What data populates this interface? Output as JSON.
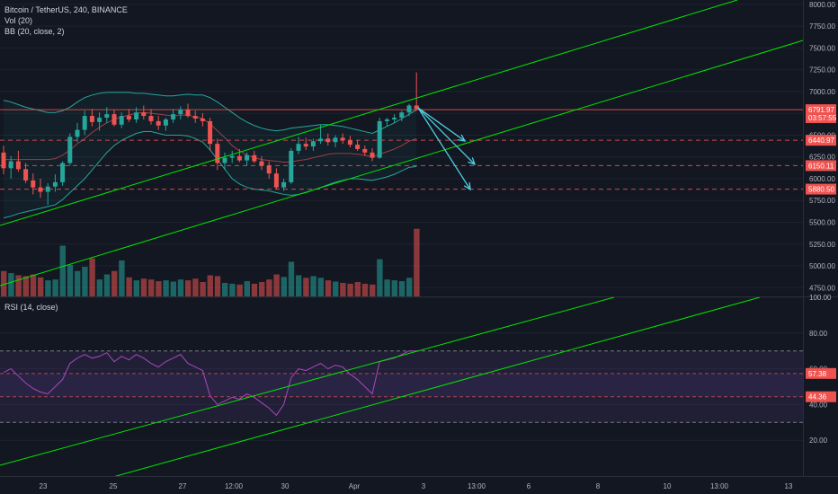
{
  "legend": {
    "symbol": "Bitcoin / TetherUS, 240, BINANCE",
    "volume": "Vol (20)",
    "bollinger": "BB (20, close, 2)",
    "rsi": "RSI (14, close)"
  },
  "colors": {
    "background": "#131722",
    "up": "#26a69a",
    "down": "#ef5350",
    "channel": "#00e600",
    "arrow": "#4dd0e1",
    "rsi_band": "#7e57c2",
    "bb": "#26a69a"
  },
  "chart_data": [
    {
      "type": "candlestick",
      "title": "Bitcoin / TetherUS, 240, BINANCE",
      "ylim": [
        4650,
        8050
      ],
      "y_ticks": [
        4750,
        5000,
        5250,
        5500,
        5750,
        6000,
        6250,
        6500,
        6750,
        7000,
        7250,
        7500,
        7750,
        8000
      ],
      "x_ticks": [
        "23",
        "25",
        "27",
        "12:00",
        "30",
        "Apr",
        "3",
        "13:00",
        "6",
        "8",
        "10",
        "13:00",
        "13"
      ],
      "price_labels": [
        {
          "label": "6791.97",
          "value": 6791.97,
          "color": "#ef5350"
        },
        {
          "label": "03:57:55",
          "value": 6700,
          "color": "#ef5350"
        },
        {
          "label": "6440.97",
          "value": 6440.97,
          "color": "#ef5350"
        },
        {
          "label": "6150.11",
          "value": 6150.11,
          "color": "#ef5350"
        },
        {
          "label": "5880.50",
          "value": 5880.5,
          "color": "#ef5350"
        }
      ],
      "levels": [
        6791.97,
        6440.97,
        6150.11,
        5880.5
      ],
      "ohlc": [
        [
          6300,
          6380,
          6050,
          6120
        ],
        [
          6120,
          6260,
          6000,
          6200
        ],
        [
          6200,
          6320,
          6080,
          6110
        ],
        [
          6110,
          6180,
          5950,
          5980
        ],
        [
          5980,
          6060,
          5820,
          5900
        ],
        [
          5900,
          6000,
          5780,
          5850
        ],
        [
          5850,
          5950,
          5700,
          5910
        ],
        [
          5910,
          6050,
          5850,
          5960
        ],
        [
          5960,
          6200,
          5920,
          6180
        ],
        [
          6180,
          6520,
          6150,
          6480
        ],
        [
          6480,
          6640,
          6420,
          6560
        ],
        [
          6560,
          6780,
          6500,
          6720
        ],
        [
          6720,
          6800,
          6600,
          6650
        ],
        [
          6650,
          6760,
          6550,
          6700
        ],
        [
          6700,
          6820,
          6640,
          6740
        ],
        [
          6740,
          6790,
          6600,
          6620
        ],
        [
          6620,
          6760,
          6580,
          6720
        ],
        [
          6720,
          6800,
          6650,
          6680
        ],
        [
          6680,
          6820,
          6640,
          6760
        ],
        [
          6760,
          6840,
          6680,
          6720
        ],
        [
          6720,
          6800,
          6620,
          6660
        ],
        [
          6660,
          6720,
          6560,
          6610
        ],
        [
          6610,
          6700,
          6550,
          6680
        ],
        [
          6680,
          6800,
          6640,
          6740
        ],
        [
          6740,
          6830,
          6680,
          6790
        ],
        [
          6790,
          6860,
          6700,
          6720
        ],
        [
          6720,
          6780,
          6640,
          6690
        ],
        [
          6690,
          6750,
          6600,
          6660
        ],
        [
          6660,
          6700,
          6320,
          6400
        ],
        [
          6400,
          6460,
          6100,
          6180
        ],
        [
          6180,
          6300,
          6100,
          6240
        ],
        [
          6240,
          6320,
          6180,
          6260
        ],
        [
          6260,
          6340,
          6190,
          6210
        ],
        [
          6210,
          6300,
          6150,
          6270
        ],
        [
          6270,
          6320,
          6180,
          6200
        ],
        [
          6200,
          6260,
          6100,
          6150
        ],
        [
          6150,
          6200,
          6000,
          6060
        ],
        [
          6060,
          6120,
          5880,
          5900
        ],
        [
          5900,
          6000,
          5860,
          5960
        ],
        [
          5960,
          6350,
          5940,
          6320
        ],
        [
          6320,
          6480,
          6280,
          6400
        ],
        [
          6400,
          6470,
          6330,
          6370
        ],
        [
          6370,
          6460,
          6320,
          6430
        ],
        [
          6430,
          6620,
          6400,
          6460
        ],
        [
          6460,
          6520,
          6380,
          6420
        ],
        [
          6420,
          6500,
          6360,
          6470
        ],
        [
          6470,
          6520,
          6400,
          6440
        ],
        [
          6440,
          6490,
          6360,
          6390
        ],
        [
          6390,
          6440,
          6320,
          6340
        ],
        [
          6340,
          6380,
          6260,
          6300
        ],
        [
          6300,
          6350,
          6200,
          6240
        ],
        [
          6240,
          6700,
          6230,
          6660
        ],
        [
          6660,
          6700,
          6600,
          6680
        ],
        [
          6680,
          6740,
          6640,
          6700
        ],
        [
          6700,
          6780,
          6660,
          6760
        ],
        [
          6760,
          6860,
          6720,
          6840
        ],
        [
          6840,
          7220,
          6780,
          6800
        ]
      ],
      "bb_upper": [
        6900,
        6880,
        6850,
        6820,
        6800,
        6780,
        6760,
        6760,
        6780,
        6820,
        6880,
        6930,
        6960,
        6980,
        6990,
        6990,
        6990,
        6990,
        6980,
        6980,
        6970,
        6960,
        6950,
        6950,
        6960,
        6970,
        6960,
        6960,
        6930,
        6880,
        6820,
        6760,
        6700,
        6650,
        6610,
        6580,
        6560,
        6550,
        6560,
        6580,
        6590,
        6600,
        6610,
        6620,
        6620,
        6610,
        6600,
        6580,
        6560,
        6540,
        6520,
        6560,
        6600,
        6640,
        6690,
        6740,
        6790
      ],
      "bb_lower": [
        5550,
        5570,
        5600,
        5620,
        5640,
        5660,
        5680,
        5700,
        5760,
        5840,
        5920,
        6000,
        6100,
        6200,
        6300,
        6380,
        6440,
        6480,
        6520,
        6540,
        6540,
        6520,
        6500,
        6500,
        6500,
        6490,
        6460,
        6420,
        6330,
        6220,
        6110,
        6000,
        5940,
        5900,
        5880,
        5870,
        5860,
        5840,
        5820,
        5810,
        5820,
        5840,
        5870,
        5900,
        5930,
        5960,
        5980,
        6000,
        6000,
        5990,
        5980,
        6000,
        6020,
        6050,
        6090,
        6130,
        6140
      ],
      "bb_basis": [
        6220,
        6220,
        6220,
        6220,
        6220,
        6220,
        6220,
        6230,
        6270,
        6330,
        6400,
        6460,
        6530,
        6590,
        6640,
        6680,
        6710,
        6730,
        6750,
        6760,
        6750,
        6740,
        6730,
        6720,
        6730,
        6730,
        6710,
        6690,
        6630,
        6550,
        6470,
        6380,
        6320,
        6270,
        6240,
        6220,
        6210,
        6200,
        6190,
        6190,
        6210,
        6220,
        6240,
        6260,
        6280,
        6290,
        6290,
        6290,
        6280,
        6270,
        6250,
        6280,
        6310,
        6340,
        6380,
        6430,
        6460
      ],
      "volume": [
        60,
        55,
        50,
        48,
        52,
        45,
        38,
        40,
        120,
        75,
        60,
        70,
        90,
        40,
        52,
        60,
        85,
        45,
        38,
        42,
        40,
        36,
        38,
        35,
        40,
        38,
        42,
        34,
        50,
        48,
        32,
        30,
        28,
        36,
        30,
        34,
        40,
        52,
        46,
        82,
        50,
        44,
        48,
        44,
        38,
        35,
        32,
        30,
        34,
        30,
        28,
        88,
        40,
        38,
        36,
        44,
        160
      ]
    },
    {
      "type": "line",
      "title": "RSI (14, close)",
      "ylim": [
        0,
        100
      ],
      "y_ticks": [
        20.0,
        40.0,
        60.0,
        80.0,
        100.0
      ],
      "bands": [
        30,
        70
      ],
      "value_labels": [
        {
          "label": "57.38",
          "value": 57.38,
          "color": "#ef5350"
        },
        {
          "label": "44.36",
          "value": 44.36,
          "color": "#ef5350"
        }
      ],
      "values": [
        58,
        60,
        56,
        52,
        49,
        47,
        46,
        50,
        54,
        63,
        66,
        68,
        66,
        67,
        69,
        64,
        67,
        65,
        68,
        66,
        63,
        61,
        64,
        66,
        68,
        63,
        61,
        59,
        45,
        40,
        42,
        44,
        43,
        46,
        44,
        41,
        38,
        34,
        40,
        55,
        60,
        59,
        61,
        63,
        60,
        62,
        61,
        57,
        54,
        50,
        46,
        64,
        65,
        66,
        68,
        70,
        70
      ]
    }
  ]
}
